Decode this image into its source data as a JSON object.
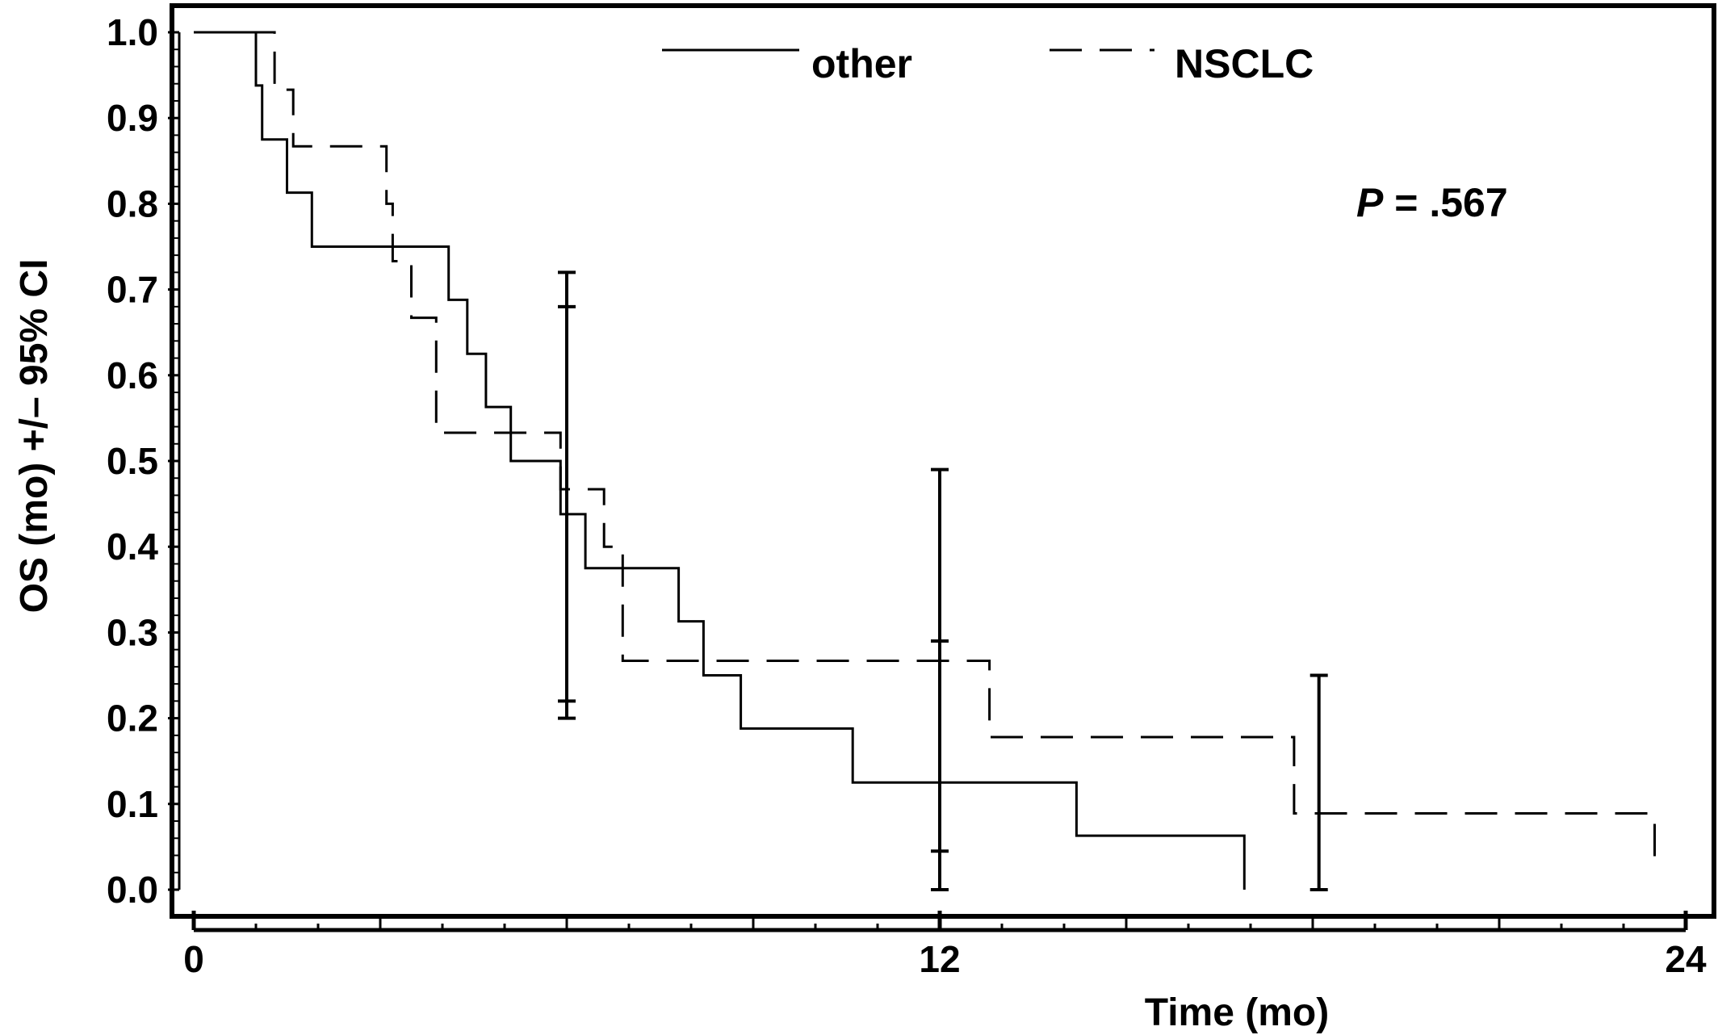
{
  "chart_data": {
    "type": "line",
    "title": "",
    "xlabel": "Time (mo)",
    "ylabel": "OS (mo) +/– 95% CI",
    "xlim": [
      0,
      24
    ],
    "ylim": [
      0,
      1
    ],
    "x_ticks": [
      "0",
      "12",
      "24"
    ],
    "x_tick_values": [
      0,
      12,
      24
    ],
    "y_ticks": [
      "0.0",
      "0.1",
      "0.2",
      "0.3",
      "0.4",
      "0.5",
      "0.6",
      "0.7",
      "0.8",
      "0.9",
      "1.0"
    ],
    "y_tick_values": [
      0,
      0.1,
      0.2,
      0.3,
      0.4,
      0.5,
      0.6,
      0.7,
      0.8,
      0.9,
      1.0
    ],
    "grid": false,
    "legend_position": "top-center",
    "annotation": {
      "italic": "P",
      "rest": " = .567"
    },
    "series": [
      {
        "name": "other",
        "style": "solid",
        "color": "#000000",
        "steps": [
          [
            0,
            1.0
          ],
          [
            1.0,
            0.938
          ],
          [
            1.1,
            0.875
          ],
          [
            1.5,
            0.813
          ],
          [
            1.9,
            0.75
          ],
          [
            4.1,
            0.688
          ],
          [
            4.4,
            0.625
          ],
          [
            4.7,
            0.563
          ],
          [
            5.1,
            0.5
          ],
          [
            5.9,
            0.438
          ],
          [
            6.3,
            0.375
          ],
          [
            7.8,
            0.313
          ],
          [
            8.2,
            0.25
          ],
          [
            8.8,
            0.188
          ],
          [
            10.6,
            0.125
          ],
          [
            14.2,
            0.063
          ],
          [
            16.9,
            0.0
          ]
        ],
        "error_bars": [
          {
            "x": 6.0,
            "lower": 0.2,
            "upper": 0.72
          },
          {
            "x": 12.0,
            "lower": 0.0,
            "upper": 0.49
          }
        ]
      },
      {
        "name": "NSCLC",
        "style": "dashed",
        "color": "#000000",
        "steps": [
          [
            0,
            1.0
          ],
          [
            1.3,
            0.933
          ],
          [
            1.6,
            0.867
          ],
          [
            3.1,
            0.8
          ],
          [
            3.2,
            0.733
          ],
          [
            3.5,
            0.667
          ],
          [
            3.9,
            0.533
          ],
          [
            5.9,
            0.467
          ],
          [
            6.6,
            0.4
          ],
          [
            6.9,
            0.267
          ],
          [
            12.8,
            0.178
          ],
          [
            17.7,
            0.089
          ],
          [
            23.5,
            0.02
          ]
        ],
        "error_bars": [
          {
            "x": 6.0,
            "lower": 0.22,
            "upper": 0.68
          },
          {
            "x": 12.0,
            "lower": 0.045,
            "upper": 0.29
          },
          {
            "x": 18.1,
            "lower": 0.0,
            "upper": 0.25
          }
        ]
      }
    ]
  }
}
